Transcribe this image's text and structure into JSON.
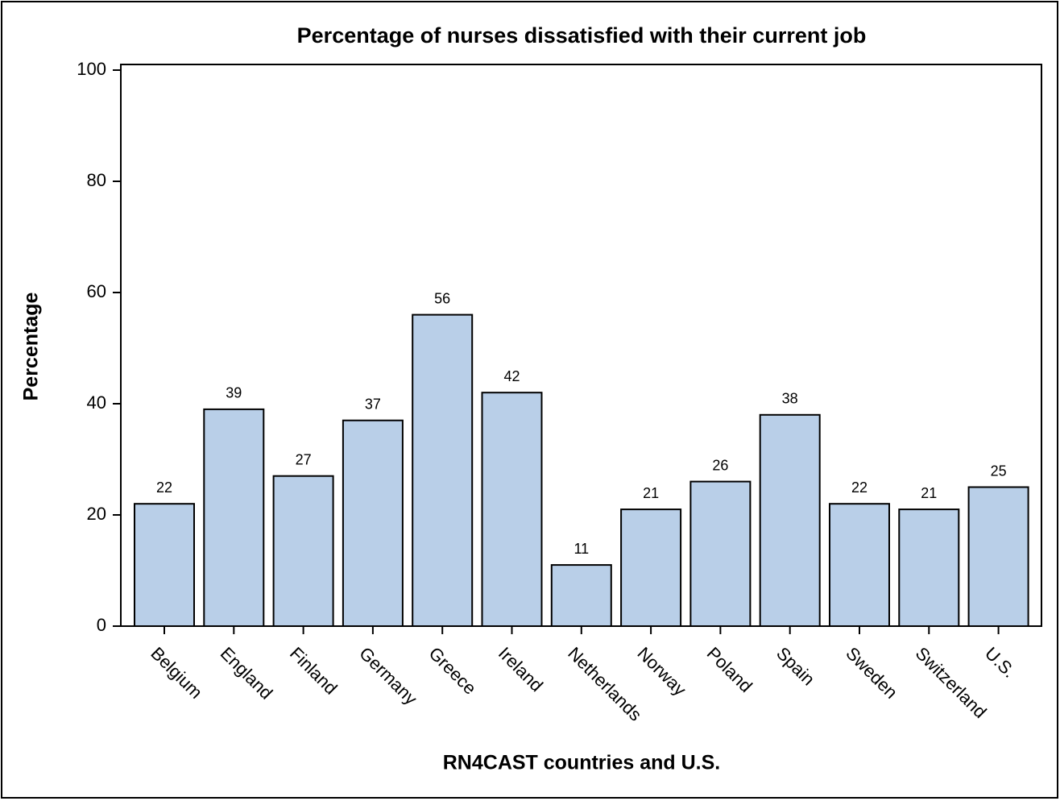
{
  "chart_data": {
    "type": "bar",
    "title": "Percentage of nurses dissatisfied with their current job",
    "x_label": "RN4CAST countries and U.S.",
    "y_label": "Percentage",
    "categories": [
      "Belgium",
      "England",
      "Finland",
      "Germany",
      "Greece",
      "Ireland",
      "Netherlands",
      "Norway",
      "Poland",
      "Spain",
      "Sweden",
      "Switzerland",
      "U.S."
    ],
    "values": [
      22,
      39,
      27,
      37,
      56,
      42,
      11,
      21,
      26,
      38,
      22,
      21,
      25
    ],
    "color": "#b9cfe8",
    "ylim": [
      0,
      100
    ],
    "yticks": [
      0,
      20,
      40,
      60,
      80,
      100
    ],
    "grid": false
  }
}
